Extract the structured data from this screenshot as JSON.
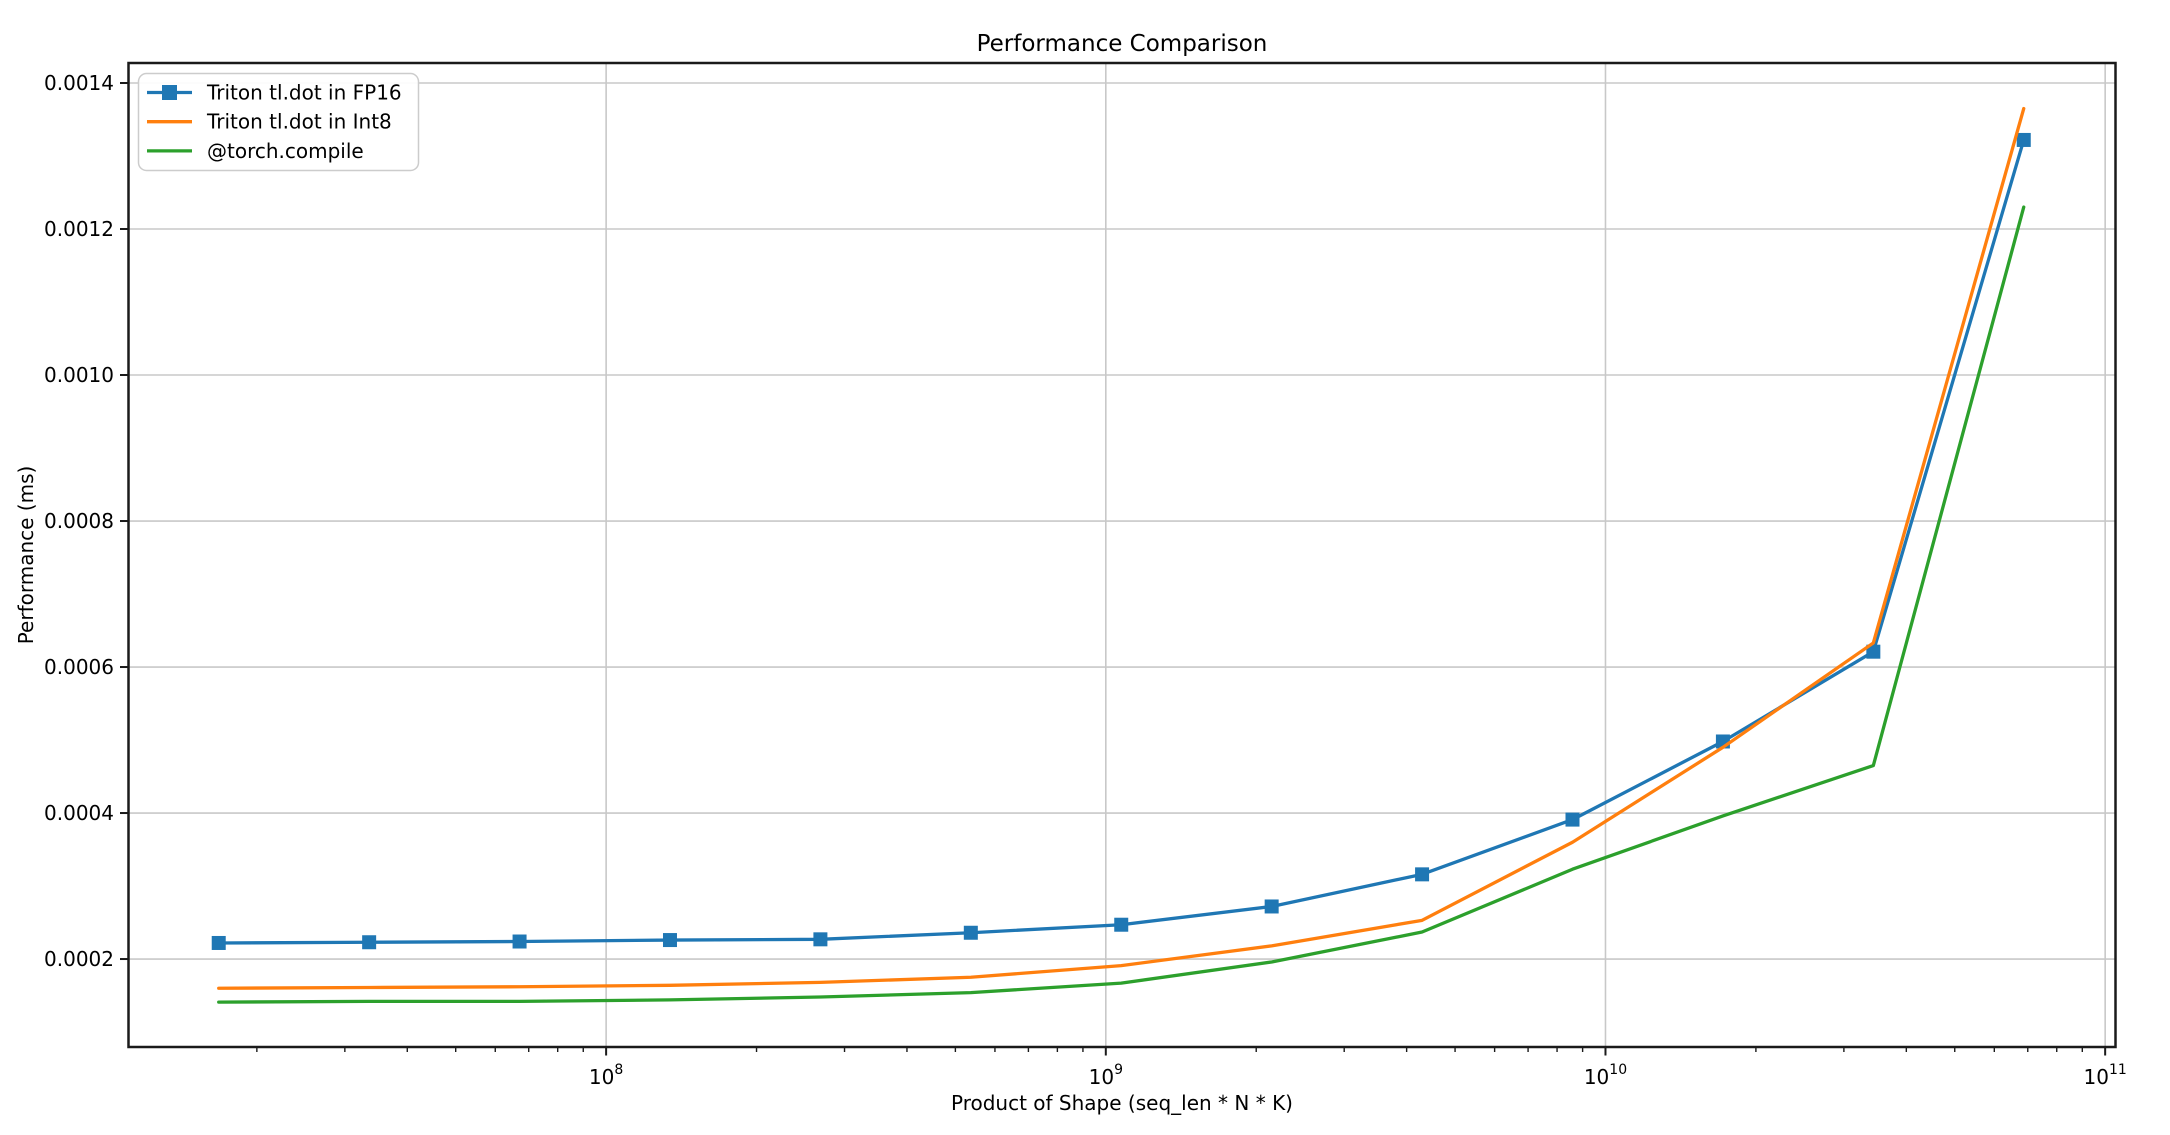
{
  "figure": {
    "background": "#ffffff",
    "title": "Performance Comparison"
  },
  "chart_data": {
    "type": "line",
    "title": "Performance Comparison",
    "xlabel": "Product of Shape (seq_len * N * K)",
    "ylabel": "Performance (ms)",
    "x_scale": "log",
    "y_scale": "linear",
    "grid": true,
    "grid_color": "#c8c8c8",
    "spine_color": "#1a1a1a",
    "legend_position": "upper-left",
    "xlim": [
      11070000,
      104880000000
    ],
    "ylim": [
      7.95e-05,
      0.0014274
    ],
    "x": [
      16777216,
      33554432,
      67108864,
      134217728,
      268435456,
      536870912,
      1073741824,
      2147483648,
      4294967296,
      8589934592,
      17179869184,
      34359738368,
      68719476736
    ],
    "series": [
      {
        "name": "Triton tl.dot in FP16",
        "color": "#1f77b4",
        "marker": "square",
        "values": [
          0.000222,
          0.000223,
          0.000224,
          0.000226,
          0.000227,
          0.000236,
          0.000247,
          0.000272,
          0.000316,
          0.000391,
          0.000498,
          0.000621,
          0.001322
        ]
      },
      {
        "name": "Triton tl.dot in Int8",
        "color": "#ff7f0e",
        "marker": "none",
        "values": [
          0.00016,
          0.000161,
          0.000162,
          0.000164,
          0.000168,
          0.000175,
          0.000191,
          0.000218,
          0.000253,
          0.00036,
          0.00049,
          0.000633,
          0.001365
        ]
      },
      {
        "name": "@torch.compile",
        "color": "#2ca02c",
        "marker": "none",
        "values": [
          0.000141,
          0.000142,
          0.000142,
          0.000144,
          0.000148,
          0.000154,
          0.000167,
          0.000196,
          0.000237,
          0.000323,
          0.000396,
          0.000465,
          0.00123
        ]
      }
    ],
    "x_ticks": [
      {
        "value": 100000000,
        "base": "10",
        "exp": "8"
      },
      {
        "value": 1000000000,
        "base": "10",
        "exp": "9"
      },
      {
        "value": 10000000000,
        "base": "10",
        "exp": "10"
      },
      {
        "value": 100000000000,
        "base": "10",
        "exp": "11"
      }
    ],
    "y_ticks": [
      {
        "value": 0.0002,
        "label": "0.0002"
      },
      {
        "value": 0.0004,
        "label": "0.0004"
      },
      {
        "value": 0.0006,
        "label": "0.0006"
      },
      {
        "value": 0.0008,
        "label": "0.0008"
      },
      {
        "value": 0.001,
        "label": "0.0010"
      },
      {
        "value": 0.0012,
        "label": "0.0012"
      },
      {
        "value": 0.0014,
        "label": "0.0014"
      }
    ]
  }
}
